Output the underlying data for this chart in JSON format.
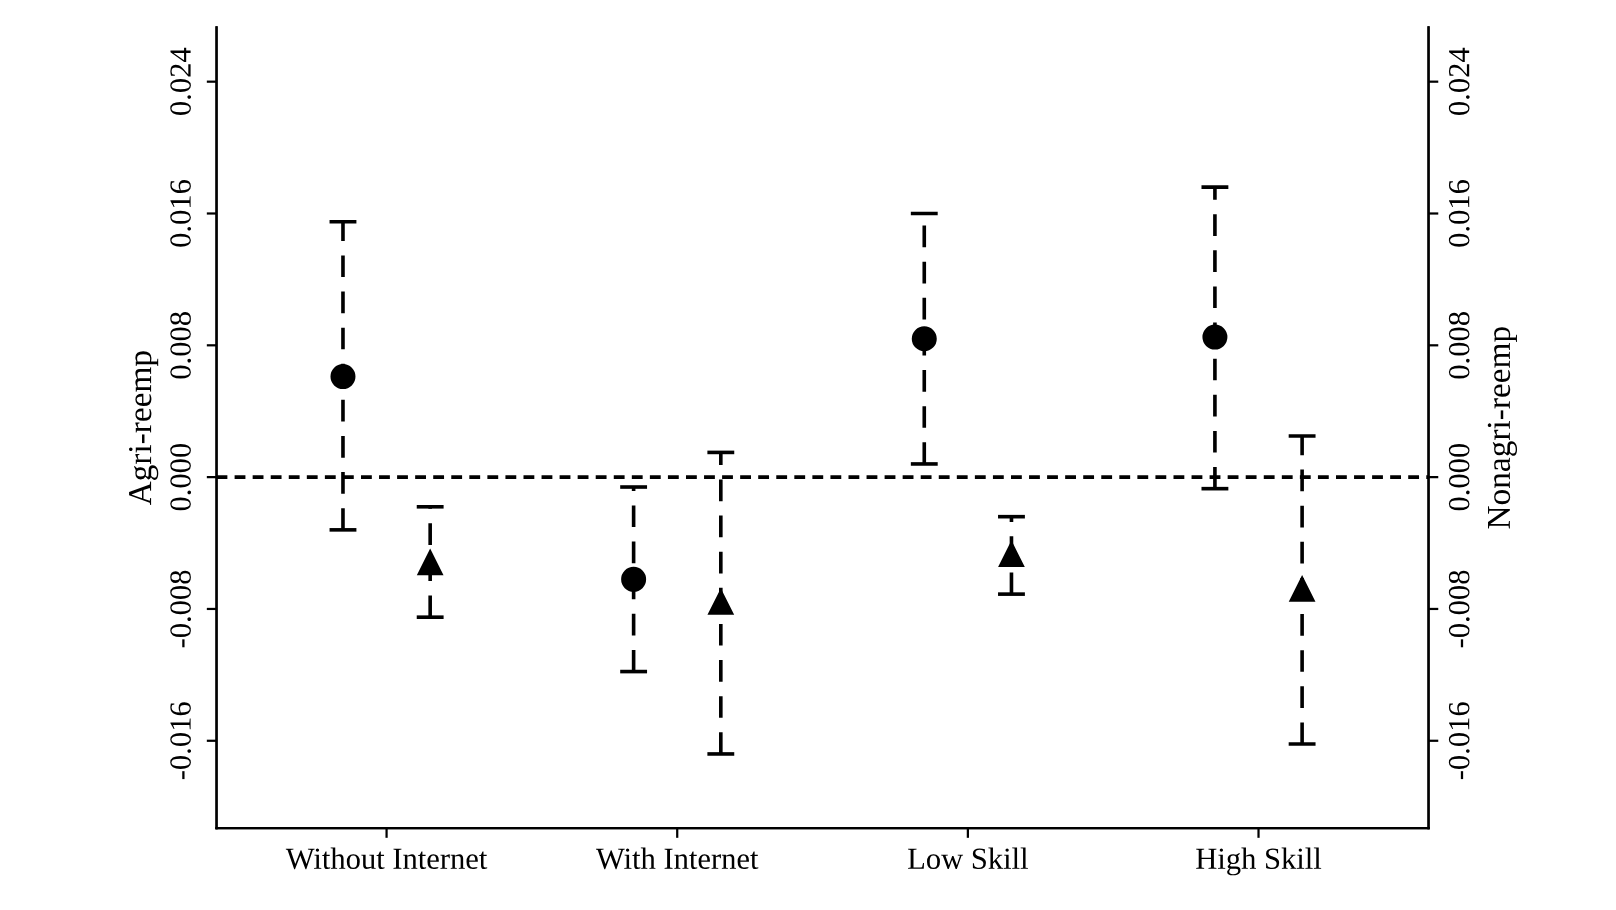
{
  "chart_data": {
    "type": "scatter",
    "ylabel": "Agri-reemp",
    "y2label": "Nonagri-reemp",
    "categories": [
      "Without Internet",
      "With Internet",
      "Low Skill",
      "High Skill"
    ],
    "series": [
      {
        "color": "#000000",
        "marker": "circle",
        "values": [
          0.0061,
          -0.0062,
          0.0084,
          0.0085
        ],
        "errors": [
          [
            -0.0032,
            0.0155
          ],
          [
            -0.0118,
            -0.0006
          ],
          [
            0.0008,
            0.016
          ],
          [
            -0.0007,
            0.0176
          ]
        ]
      },
      {
        "color": "#000000",
        "marker": "triangle",
        "values": [
          -0.0052,
          -0.0076,
          -0.0047,
          -0.0068
        ],
        "errors": [
          [
            -0.0085,
            -0.0018
          ],
          [
            -0.0168,
            0.0015
          ],
          [
            -0.0071,
            -0.0024
          ],
          [
            -0.0162,
            0.0025
          ]
        ]
      }
    ],
    "line_style": "dashed",
    "ylim": [
      -0.0213,
      0.0273
    ],
    "yticks": [
      {
        "value": -0.016,
        "label": "-0.016"
      },
      {
        "value": -0.008,
        "label": "-0.008"
      },
      {
        "value": 0,
        "label": "0.000"
      },
      {
        "value": 0.008,
        "label": "0.008"
      },
      {
        "value": 0.016,
        "label": "0.016"
      },
      {
        "value": 0.024,
        "label": "0.024"
      }
    ],
    "y2lim": [
      -0.0213,
      0.0273
    ],
    "y2ticks": [
      {
        "value": -0.016,
        "label": "-0.016"
      },
      {
        "value": -0.008,
        "label": "-0.008"
      },
      {
        "value": 0,
        "label": "0.000"
      },
      {
        "value": 0.008,
        "label": "0.008"
      },
      {
        "value": 0.016,
        "label": "0.016"
      },
      {
        "value": 0.024,
        "label": "0.024"
      }
    ],
    "ref_lines": [
      {
        "axis": "y",
        "value": 0,
        "color": "#000000",
        "line_style": "dotted"
      }
    ],
    "grid": false,
    "legend": false
  }
}
